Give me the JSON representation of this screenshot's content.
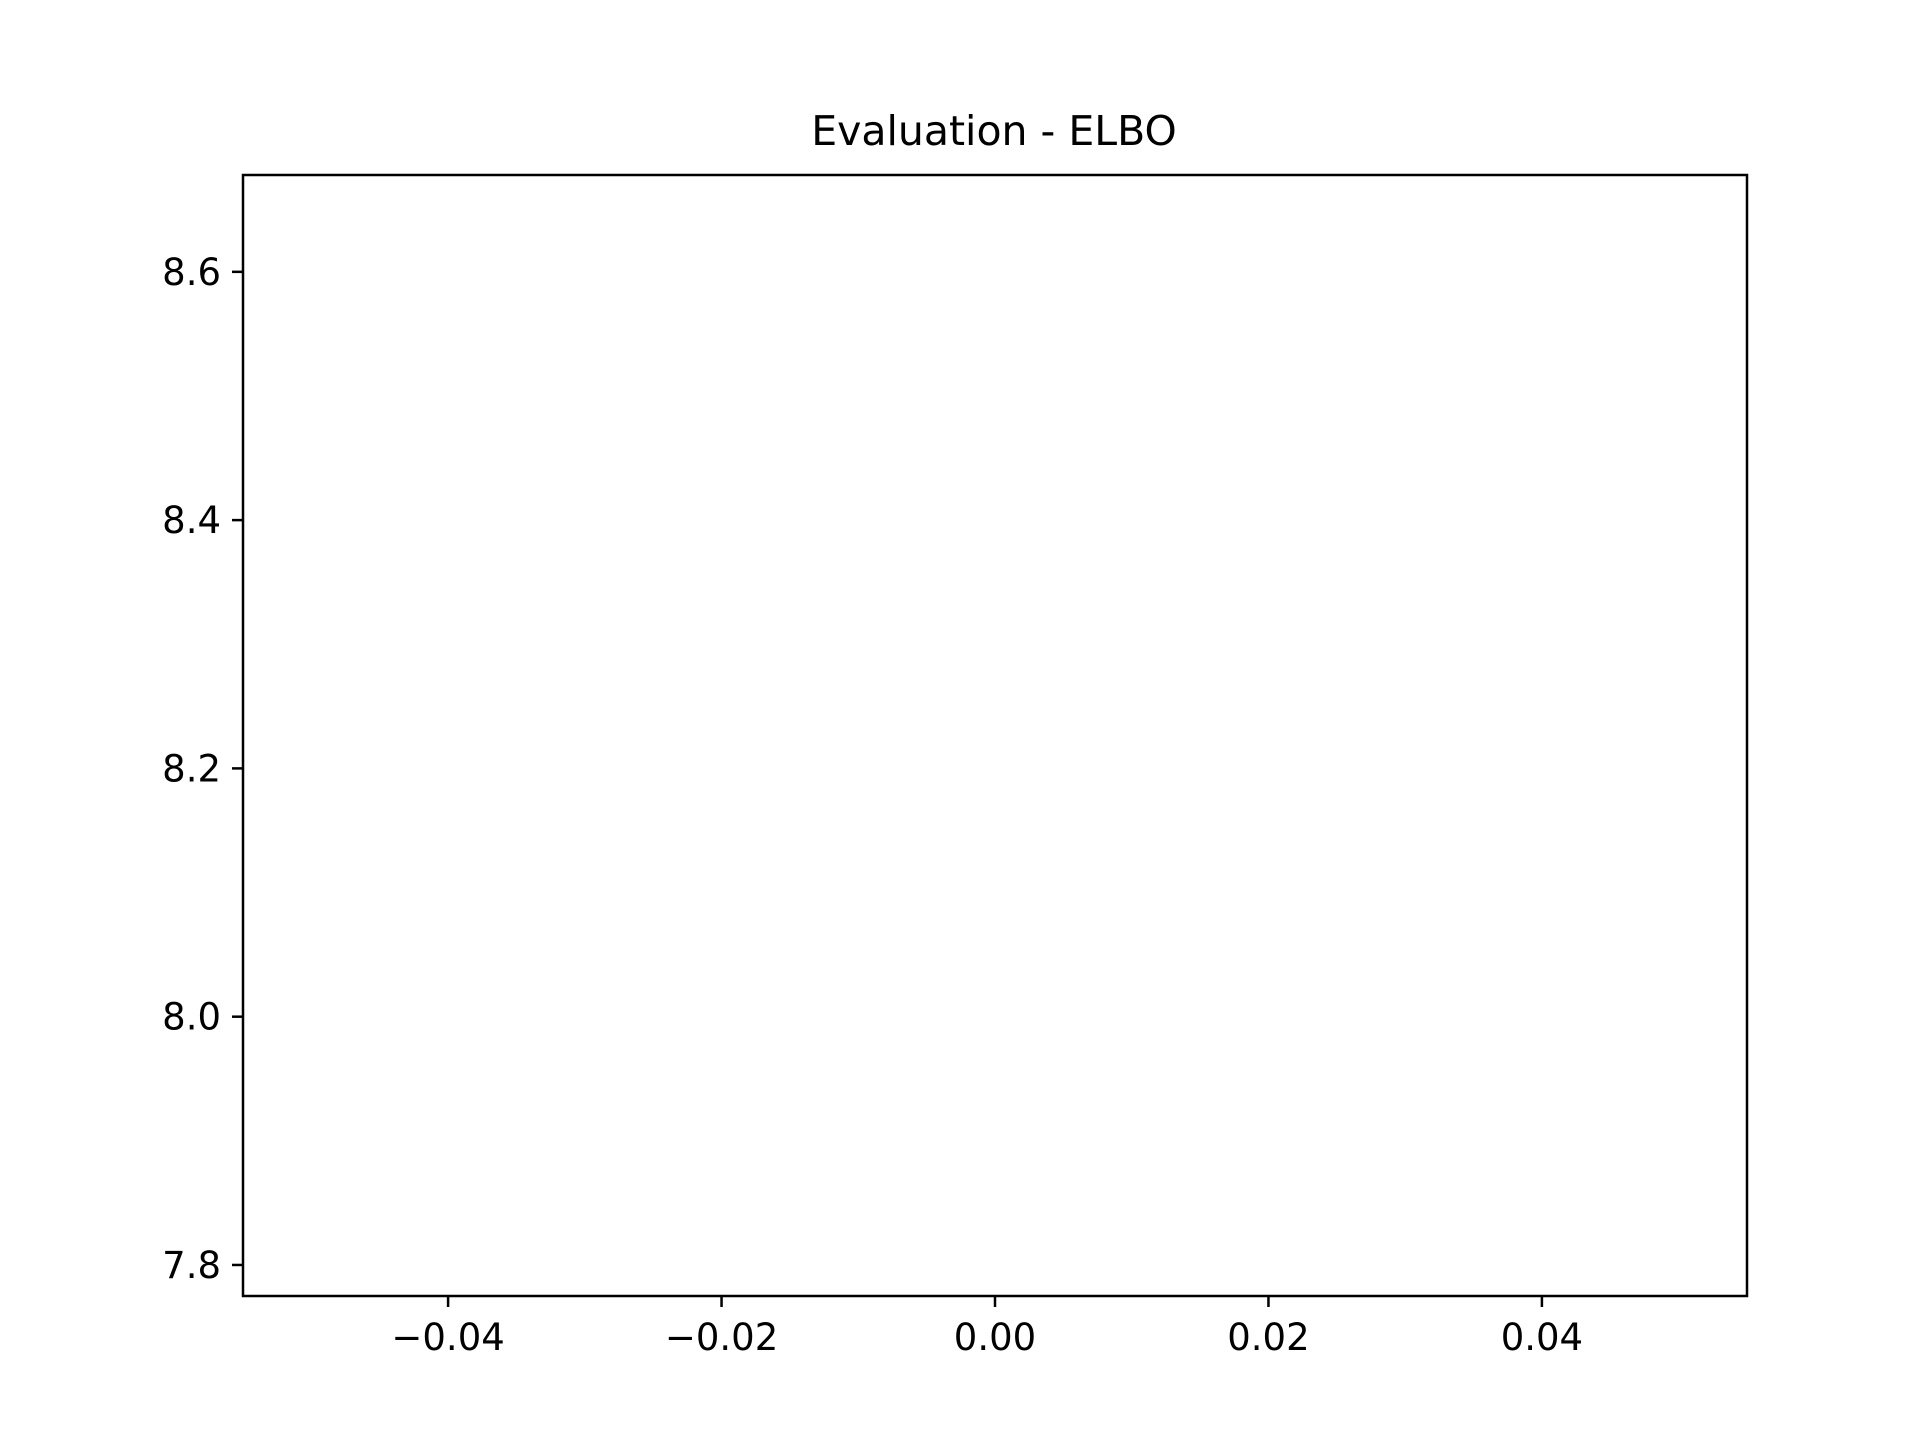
{
  "chart_data": {
    "type": "line",
    "title": "Evaluation - ELBO",
    "xlabel": "",
    "ylabel": "",
    "xlim": [
      -0.055,
      0.055
    ],
    "ylim": [
      7.775,
      8.678
    ],
    "x_ticks": [
      {
        "value": -0.04,
        "label": "−0.04"
      },
      {
        "value": -0.02,
        "label": "−0.02"
      },
      {
        "value": 0.0,
        "label": "0.00"
      },
      {
        "value": 0.02,
        "label": "0.02"
      },
      {
        "value": 0.04,
        "label": "0.04"
      }
    ],
    "y_ticks": [
      {
        "value": 7.8,
        "label": "7.8"
      },
      {
        "value": 8.0,
        "label": "8.0"
      },
      {
        "value": 8.2,
        "label": "8.2"
      },
      {
        "value": 8.4,
        "label": "8.4"
      },
      {
        "value": 8.6,
        "label": "8.6"
      }
    ],
    "series": [
      {
        "x": [],
        "y": []
      }
    ],
    "grid": false,
    "legend": "none"
  }
}
